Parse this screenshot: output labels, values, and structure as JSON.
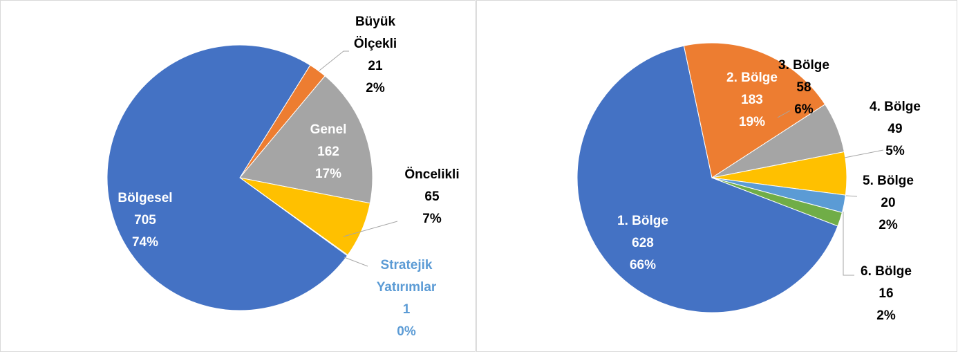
{
  "chart_data": [
    {
      "type": "pie",
      "categories": [
        "Büyük Ölçekli",
        "Genel",
        "Öncelikli",
        "Stratejik Yatırımlar",
        "Bölgesel"
      ],
      "values": [
        21,
        162,
        65,
        1,
        705
      ],
      "percent_labels": [
        "2%",
        "17%",
        "7%",
        "0%",
        "74%"
      ],
      "colors": [
        "#ed7d31",
        "#a5a5a5",
        "#ffc000",
        "#5b9bd5",
        "#4472c4"
      ]
    },
    {
      "type": "pie",
      "categories": [
        "1. Bölge",
        "2. Bölge",
        "3. Bölge",
        "4. Bölge",
        "5. Bölge",
        "6. Bölge"
      ],
      "values": [
        628,
        183,
        58,
        49,
        20,
        16
      ],
      "percent_labels": [
        "66%",
        "19%",
        "6%",
        "5%",
        "2%",
        "2%"
      ],
      "colors": [
        "#4472c4",
        "#ed7d31",
        "#a5a5a5",
        "#ffc000",
        "#5b9bd5",
        "#70ad47"
      ]
    }
  ]
}
